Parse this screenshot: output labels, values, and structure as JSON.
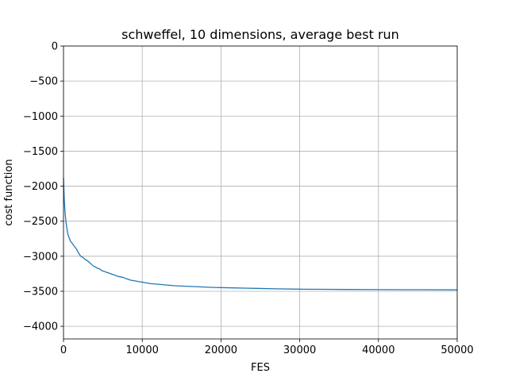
{
  "chart_data": {
    "type": "line",
    "title": "schweffel, 10 dimensions, average best run",
    "xlabel": "FES",
    "ylabel": "cost function",
    "xlim": [
      0,
      50000
    ],
    "ylim": [
      -4180,
      0
    ],
    "grid": true,
    "x_ticks": [
      0,
      10000,
      20000,
      30000,
      40000,
      50000
    ],
    "x_tick_labels": [
      "0",
      "10000",
      "20000",
      "30000",
      "40000",
      "50000"
    ],
    "y_ticks": [
      0,
      -500,
      -1000,
      -1500,
      -2000,
      -2500,
      -3000,
      -3500,
      -4000
    ],
    "y_tick_labels": [
      "0",
      "−500",
      "−1000",
      "−1500",
      "−2000",
      "−2500",
      "−3000",
      "−3500",
      "−4000"
    ],
    "series": [
      {
        "color": "#1f77b4",
        "x": [
          0,
          50,
          100,
          200,
          300,
          400,
          500,
          600,
          700,
          800,
          900,
          1000,
          1200,
          1400,
          1600,
          1800,
          2000,
          2200,
          2500,
          2800,
          3000,
          3300,
          3600,
          3800,
          4000,
          4300,
          4600,
          4800,
          5000,
          5500,
          6000,
          6500,
          7000,
          7500,
          8000,
          8500,
          9000,
          9500,
          10000,
          11000,
          12000,
          13000,
          14000,
          15000,
          17000,
          19000,
          21000,
          23000,
          25000,
          27000,
          30000,
          33000,
          36000,
          40000,
          45000,
          50000
        ],
        "y": [
          -1880,
          -2050,
          -2200,
          -2380,
          -2500,
          -2580,
          -2650,
          -2700,
          -2730,
          -2760,
          -2790,
          -2800,
          -2830,
          -2860,
          -2890,
          -2930,
          -2970,
          -3000,
          -3020,
          -3050,
          -3060,
          -3090,
          -3120,
          -3140,
          -3150,
          -3170,
          -3180,
          -3200,
          -3210,
          -3230,
          -3250,
          -3270,
          -3290,
          -3300,
          -3320,
          -3340,
          -3350,
          -3360,
          -3370,
          -3390,
          -3400,
          -3410,
          -3420,
          -3425,
          -3435,
          -3445,
          -3450,
          -3455,
          -3460,
          -3465,
          -3470,
          -3472,
          -3474,
          -3476,
          -3478,
          -3480
        ]
      }
    ]
  }
}
